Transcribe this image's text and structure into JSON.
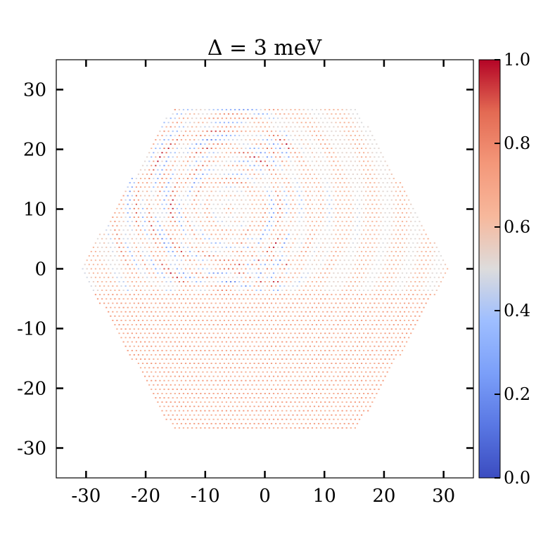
{
  "chart_data": {
    "type": "scatter",
    "title": "Δ = 3 meV",
    "xlabel": "",
    "ylabel": "",
    "xlim": [
      -35,
      35
    ],
    "ylim": [
      -35,
      35
    ],
    "xticks": [
      -30,
      -20,
      -10,
      0,
      10,
      20,
      30
    ],
    "xtick_labels": [
      "-30",
      "-20",
      "-10",
      "0",
      "10",
      "20",
      "30"
    ],
    "yticks": [
      30,
      20,
      10,
      0,
      -10,
      -20,
      -30
    ],
    "ytick_labels": [
      "30",
      "20",
      "10",
      "0",
      "-10",
      "-20",
      "-30"
    ],
    "grid": false,
    "domain_shape": "hexagon",
    "hexagon_extent": {
      "x_half_width": 31,
      "y_half_height": 27
    },
    "colormap": "coolwarm",
    "value_range": [
      0,
      1
    ],
    "colorbar": {
      "ticks": [
        0.0,
        0.2,
        0.4,
        0.6,
        0.8,
        1.0
      ],
      "tick_labels": [
        "0.0",
        "0.2",
        "0.4",
        "0.6",
        "0.8",
        "1.0"
      ]
    },
    "pattern": {
      "description_values": "upper-left region shows strong alternating red/blue (0.05–0.95); lower half near 0.65–0.75; elsewhere mild 0.4–0.7"
    }
  }
}
